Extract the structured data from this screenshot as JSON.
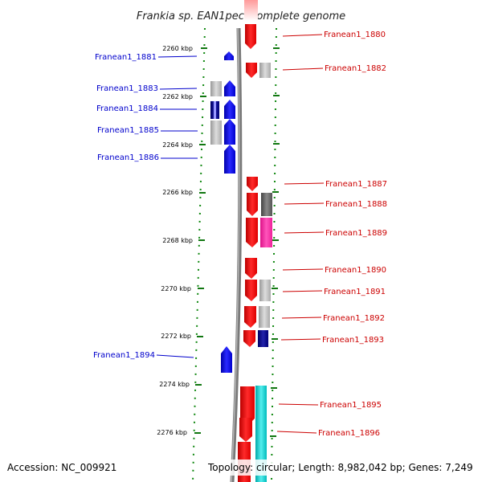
{
  "title": "Frankia sp. EAN1pec, complete genome",
  "footer": {
    "accession": "Accession: NC_009921",
    "topology": "Topology: circular; Length: 8,982,042 bp; Genes: 7,249"
  },
  "scale_labels": [
    "2260 kbp",
    "2262 kbp",
    "2264 kbp",
    "2266 kbp",
    "2268 kbp",
    "2270 kbp",
    "2272 kbp",
    "2274 kbp",
    "2276 kbp"
  ],
  "genes_left": [
    {
      "label": "Franean1_1881",
      "color": "#0000ff"
    },
    {
      "label": "Franean1_1883",
      "color": "#0000ff",
      "partner": "#bbbbbb"
    },
    {
      "label": "Franean1_1884",
      "color": "#0000ff",
      "partner": "#00008b"
    },
    {
      "label": "Franean1_1885",
      "color": "#0000ff",
      "partner": "#c0c0c0"
    },
    {
      "label": "Franean1_1886",
      "color": "#0000ff"
    },
    {
      "label": "Franean1_1894",
      "color": "#0000ff"
    }
  ],
  "genes_right": [
    {
      "label": "Franean1_1880",
      "color": "#ff0000"
    },
    {
      "label": "Franean1_1882",
      "color": "#ff0000",
      "partner": "#b0b0b0"
    },
    {
      "label": "Franean1_1887",
      "color": "#ff0000"
    },
    {
      "label": "Franean1_1888",
      "color": "#ff0000",
      "partner": "#6e6e6e"
    },
    {
      "label": "Franean1_1889",
      "color": "#ff0000",
      "partner": "#ff33aa"
    },
    {
      "label": "Franean1_1890",
      "color": "#ff0000"
    },
    {
      "label": "Franean1_1891",
      "color": "#ff0000",
      "partner": "#b8b8b8"
    },
    {
      "label": "Franean1_1892",
      "color": "#ff0000",
      "partner": "#b8b8b8"
    },
    {
      "label": "Franean1_1893",
      "color": "#ff0000",
      "partner": "#00008b"
    },
    {
      "label": "Franean1_1895",
      "color": "#ff0000",
      "partner": "#00cccc"
    },
    {
      "label": "Franean1_1896",
      "color": "#ff0000",
      "partner": "#00cccc"
    }
  ]
}
